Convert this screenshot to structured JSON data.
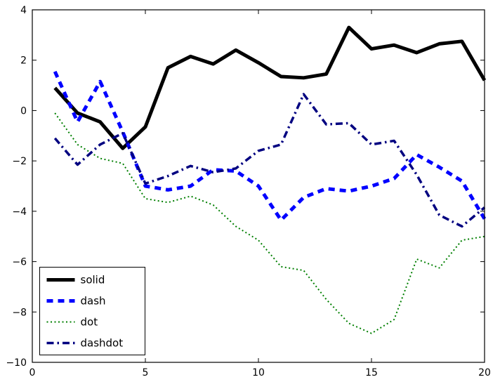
{
  "figure": {
    "background": "#ffffff",
    "frame_color": "#000000"
  },
  "chart_data": {
    "type": "line",
    "title": "",
    "xlabel": "",
    "ylabel": "",
    "xlim": [
      0,
      20
    ],
    "ylim": [
      -10,
      4
    ],
    "xticks": [
      0,
      5,
      10,
      15,
      20
    ],
    "yticks": [
      -10,
      -8,
      -6,
      -4,
      -2,
      0,
      2,
      4
    ],
    "grid": false,
    "legend_position": "lower left",
    "x": [
      1,
      2,
      3,
      4,
      5,
      6,
      7,
      8,
      9,
      10,
      11,
      12,
      13,
      14,
      15,
      16,
      17,
      18,
      19,
      20
    ],
    "series": [
      {
        "name": "solid",
        "color": "#000000",
        "linestyle": "solid",
        "linewidth": 5,
        "values": [
          0.9,
          -0.1,
          -0.45,
          -1.5,
          -0.65,
          1.7,
          2.15,
          1.85,
          2.4,
          1.9,
          1.35,
          1.3,
          1.45,
          3.3,
          2.45,
          2.6,
          2.3,
          2.65,
          2.75,
          1.2
        ]
      },
      {
        "name": "dash",
        "color": "#0000ff",
        "linestyle": "dash",
        "linewidth": 5,
        "values": [
          1.55,
          -0.45,
          1.15,
          -0.85,
          -3.0,
          -3.15,
          -3.0,
          -2.35,
          -2.4,
          -3.0,
          -4.35,
          -3.45,
          -3.1,
          -3.2,
          -3.0,
          -2.7,
          -1.75,
          -2.25,
          -2.8,
          -4.3
        ]
      },
      {
        "name": "dot",
        "color": "#007f00",
        "linestyle": "dot",
        "linewidth": 2,
        "values": [
          -0.1,
          -1.35,
          -1.9,
          -2.1,
          -3.5,
          -3.65,
          -3.4,
          -3.75,
          -4.6,
          -5.15,
          -6.2,
          -6.35,
          -7.5,
          -8.45,
          -8.85,
          -8.3,
          -5.9,
          -6.25,
          -5.15,
          -5.0
        ]
      },
      {
        "name": "dashdot",
        "color": "#000080",
        "linestyle": "dashdot",
        "linewidth": 3.5,
        "values": [
          -1.1,
          -2.15,
          -1.35,
          -0.9,
          -2.9,
          -2.6,
          -2.2,
          -2.45,
          -2.3,
          -1.6,
          -1.35,
          0.65,
          -0.55,
          -0.5,
          -1.35,
          -1.2,
          -2.55,
          -4.15,
          -4.6,
          -3.85
        ]
      }
    ]
  }
}
